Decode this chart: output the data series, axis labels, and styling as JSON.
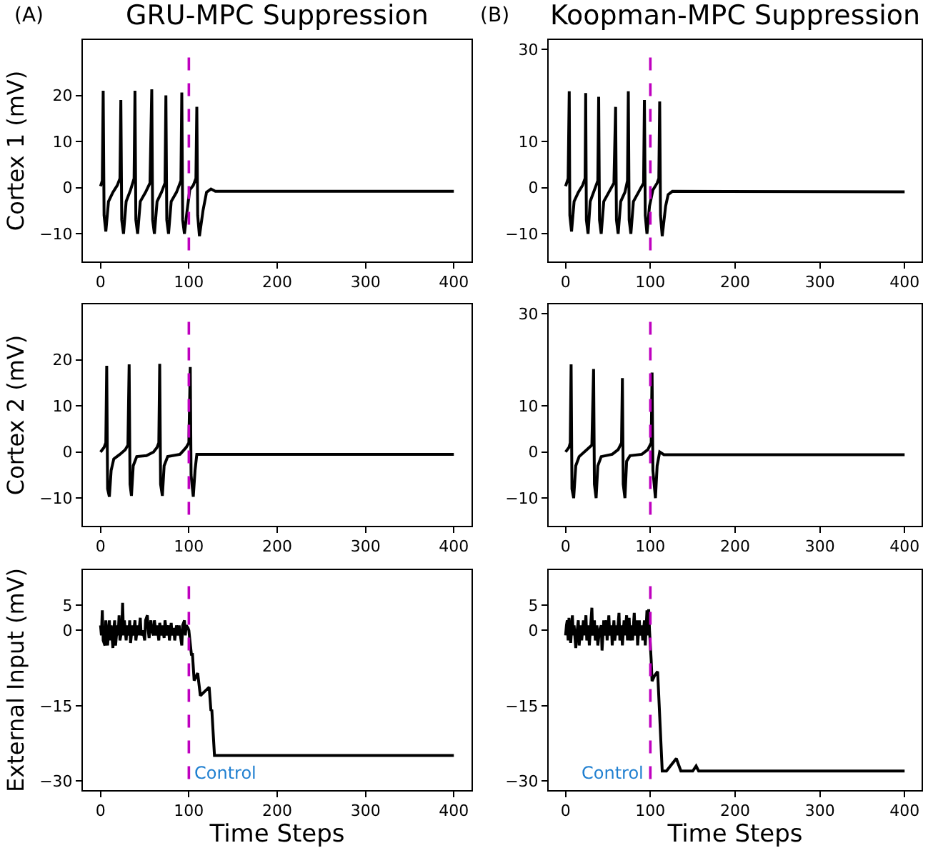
{
  "chart_data": [
    {
      "type": "line",
      "title": "GRU-MPC Suppression",
      "ylabel": "Cortex 1 (mV)",
      "annotations": [
        "(A)"
      ],
      "xlim": [
        -20,
        420
      ],
      "xticks": [
        0,
        100,
        200,
        300,
        400
      ],
      "ylim": [
        -16,
        32
      ],
      "yticks": [
        -10,
        0,
        10,
        20
      ],
      "grid": false,
      "line_style": "solid",
      "ref_lines": [
        {
          "axis": "x",
          "value": 100,
          "color": "#bf00bf",
          "line_style": "dashed"
        }
      ],
      "series": [
        {
          "color": "#000000",
          "x": [
            0,
            2,
            3,
            4,
            6,
            9,
            14,
            19,
            22,
            23,
            24,
            26,
            29,
            34,
            38,
            39,
            40,
            42,
            45,
            51,
            56,
            58,
            59,
            61,
            64,
            69,
            73,
            74,
            75,
            77,
            80,
            86,
            91,
            92,
            93,
            95,
            98,
            101,
            105,
            108,
            109,
            110,
            112,
            116,
            120,
            125,
            130,
            400
          ],
          "values": [
            0.3,
            1.5,
            21,
            -6,
            -9.5,
            -3,
            -1,
            0.5,
            2,
            19,
            -7,
            -10,
            -3,
            -0.5,
            2,
            21,
            -7,
            -10,
            -3,
            -1,
            1,
            21.3,
            -7,
            -10,
            -3,
            -1,
            1,
            20,
            -7,
            -10,
            -3,
            -1,
            1.5,
            20.6,
            -7,
            -10,
            -5,
            -0.5,
            0.5,
            2,
            17.5,
            -6,
            -10.5,
            -5,
            -1,
            -0.3,
            -0.8,
            -0.8
          ]
        }
      ]
    },
    {
      "type": "line",
      "title": "Koopman-MPC Suppression",
      "annotations": [
        "(B)"
      ],
      "xlim": [
        -20,
        420
      ],
      "xticks": [
        0,
        100,
        200,
        300,
        400
      ],
      "ylim": [
        -16,
        32
      ],
      "yticks": [
        -10,
        0,
        10,
        30
      ],
      "grid": false,
      "line_style": "solid",
      "ref_lines": [
        {
          "axis": "x",
          "value": 100,
          "color": "#bf00bf",
          "line_style": "dashed"
        }
      ],
      "series": [
        {
          "color": "#000000",
          "x": [
            0,
            3,
            4.3,
            5,
            7,
            10,
            15,
            20,
            23,
            23.7,
            24.5,
            26.5,
            29,
            34,
            38,
            39,
            40,
            42,
            45,
            51,
            57,
            59,
            60,
            62,
            65,
            70,
            73,
            74,
            75,
            77,
            80,
            86,
            92,
            93,
            94,
            96,
            99,
            103,
            108,
            110,
            111,
            112,
            114,
            118,
            121,
            126,
            400
          ],
          "values": [
            0.3,
            2,
            20.9,
            -6,
            -9.5,
            -3,
            -1,
            0.5,
            2,
            20.5,
            -7,
            -10,
            -3,
            -0.5,
            1.5,
            19.7,
            -7,
            -10,
            -3,
            -1,
            1,
            17.5,
            -7,
            -10,
            -3,
            -1,
            1.5,
            20.9,
            -7,
            -10,
            -3,
            -1,
            1,
            19,
            -6,
            -10,
            -4,
            -0.5,
            1,
            2,
            18.7,
            -6,
            -10.5,
            -4,
            -1.5,
            -0.8,
            -0.9
          ]
        }
      ]
    },
    {
      "type": "line",
      "ylabel": "Cortex 2 (mV)",
      "xlim": [
        -20,
        420
      ],
      "xticks": [
        0,
        100,
        200,
        300,
        400
      ],
      "ylim": [
        -16,
        32
      ],
      "yticks": [
        -10,
        0,
        10,
        20
      ],
      "grid": false,
      "line_style": "solid",
      "ref_lines": [
        {
          "axis": "x",
          "value": 100,
          "color": "#bf00bf",
          "line_style": "dashed"
        }
      ],
      "series": [
        {
          "color": "#000000",
          "x": [
            0,
            4,
            6,
            7,
            8,
            10,
            12,
            15,
            22,
            28,
            31,
            32.4,
            33.4,
            35,
            37,
            41,
            52,
            60,
            64,
            66,
            67,
            68,
            70,
            72,
            76,
            90,
            97,
            100,
            101.6,
            102.5,
            105,
            107,
            109,
            112,
            400
          ],
          "values": [
            0,
            1,
            2,
            18.7,
            -8,
            -9.7,
            -4,
            -1.5,
            -0.5,
            0.5,
            1.5,
            19,
            -7,
            -9.5,
            -3,
            -1,
            -0.8,
            0,
            1,
            2,
            19.1,
            -7,
            -9.5,
            -3,
            -1,
            -0.5,
            1,
            2,
            18.4,
            -5,
            -9.7,
            -4,
            -0.5,
            -0.5,
            -0.5
          ]
        }
      ]
    },
    {
      "type": "line",
      "xlim": [
        -20,
        420
      ],
      "xticks": [
        0,
        100,
        200,
        300,
        400
      ],
      "ylim": [
        -16,
        32
      ],
      "yticks": [
        -10,
        0,
        10,
        30
      ],
      "grid": false,
      "line_style": "solid",
      "ref_lines": [
        {
          "axis": "x",
          "value": 100,
          "color": "#bf00bf",
          "line_style": "dashed"
        }
      ],
      "series": [
        {
          "color": "#000000",
          "x": [
            0,
            4,
            5.5,
            6.5,
            7.5,
            9.5,
            12,
            16,
            25,
            31,
            33,
            34,
            36,
            38,
            42,
            55,
            62,
            66,
            67,
            68,
            70,
            72,
            76,
            90,
            97,
            101,
            102,
            103,
            106,
            108,
            111,
            116,
            400
          ],
          "values": [
            0,
            1,
            2,
            19,
            -8,
            -10,
            -3,
            -1,
            0.5,
            1.5,
            18,
            -7,
            -10,
            -3,
            -1,
            -0.5,
            0.5,
            2,
            16,
            -7,
            -10,
            -2,
            -0.8,
            -0.5,
            0.5,
            2,
            17.2,
            -4,
            -10,
            -3,
            0,
            -0.6,
            -0.6
          ]
        }
      ]
    },
    {
      "type": "line",
      "ylabel": "External Input (mV)",
      "xlabel": "Time Steps",
      "annotations": [
        "Control"
      ],
      "xlim": [
        -20,
        420
      ],
      "xticks": [
        0,
        100,
        200,
        300,
        400
      ],
      "ylim": [
        -31.8,
        12
      ],
      "yticks": [
        -30,
        -15,
        0,
        5
      ],
      "grid": false,
      "line_style": "solid",
      "ref_lines": [
        {
          "axis": "x",
          "value": 100,
          "color": "#bf00bf",
          "line_style": "dashed"
        }
      ],
      "series": [
        {
          "color": "#000000",
          "x": [
            0,
            1,
            2,
            3,
            5,
            6,
            7,
            8,
            10,
            11,
            12,
            14,
            15,
            16,
            17,
            19,
            20,
            21,
            22,
            24,
            25,
            26,
            27,
            29,
            30,
            32,
            33,
            34,
            36,
            37,
            39,
            40,
            42,
            43,
            45,
            46,
            48,
            50,
            51,
            53,
            54,
            55,
            57,
            58,
            60,
            61,
            63,
            64,
            66,
            67,
            69,
            70,
            72,
            73,
            75,
            77,
            78,
            80,
            81,
            83,
            84,
            86,
            88,
            89,
            90,
            92,
            93,
            95,
            96,
            97,
            99,
            100,
            103,
            104,
            106,
            110,
            113,
            123,
            125,
            126,
            129,
            400
          ],
          "values": [
            1,
            -1,
            4,
            -2,
            -3,
            2,
            -1,
            -3,
            2,
            -2,
            1,
            -3.5,
            0,
            2,
            -3,
            1,
            -1,
            3,
            -2,
            0,
            5.5,
            -1,
            2,
            -2,
            1,
            -1,
            2,
            -2.5,
            1,
            -1,
            2,
            -2,
            1,
            -1,
            2.5,
            -1,
            0,
            -2,
            2,
            3,
            0,
            -1.5,
            2,
            0,
            -1,
            2,
            -1,
            1,
            -2,
            1.5,
            -1,
            1,
            -1.5,
            2,
            -1,
            1,
            -2,
            1.5,
            -1,
            0.5,
            -2,
            1,
            -1,
            1,
            -0.5,
            -3,
            1,
            2,
            -1,
            1,
            0.5,
            0,
            -5,
            -4.5,
            -10,
            -8.5,
            -13,
            -11.3,
            -16,
            -15.8,
            -24.9,
            -24.9
          ]
        }
      ]
    },
    {
      "type": "line",
      "xlabel": "Time Steps",
      "annotations": [
        "Control"
      ],
      "xlim": [
        -20,
        420
      ],
      "xticks": [
        0,
        100,
        200,
        300,
        400
      ],
      "ylim": [
        -31.8,
        12
      ],
      "yticks": [
        -30,
        -15,
        0,
        5
      ],
      "grid": false,
      "line_style": "solid",
      "ref_lines": [
        {
          "axis": "x",
          "value": 100,
          "color": "#bf00bf",
          "line_style": "dashed"
        }
      ],
      "series": [
        {
          "color": "#000000",
          "x": [
            0,
            1,
            2,
            3,
            4,
            5,
            6,
            8,
            9,
            10,
            12,
            13,
            15,
            16,
            18,
            19,
            21,
            22,
            24,
            25,
            27,
            28,
            30,
            31,
            32,
            34,
            35,
            37,
            38,
            40,
            42,
            43,
            45,
            46,
            48,
            49,
            51,
            52,
            54,
            55,
            57,
            58,
            60,
            61,
            63,
            64,
            66,
            67,
            69,
            70,
            72,
            73,
            75,
            76,
            78,
            79,
            81,
            82,
            84,
            85,
            87,
            88,
            90,
            91,
            93,
            94,
            96,
            97,
            98,
            99,
            101,
            102,
            105,
            108.6,
            114,
            119,
            130.6,
            136,
            150,
            154,
            157,
            400
          ],
          "values": [
            -1,
            1,
            2,
            -2,
            2.5,
            0,
            -2.5,
            3,
            -1,
            1,
            -3.5,
            -1,
            2,
            -3,
            1,
            -2,
            2,
            -1,
            3,
            -2,
            1,
            -3,
            2,
            4.5,
            -1,
            2,
            -2,
            1,
            -3,
            0,
            1,
            -4,
            2,
            -1,
            2,
            -2,
            3,
            -1,
            1,
            -3,
            2,
            -2,
            1,
            -1,
            3.5,
            -2,
            1,
            -3,
            2,
            -1,
            3,
            -2,
            2.5,
            -2,
            1,
            -2,
            3.5,
            -1,
            2,
            -3,
            2,
            -1,
            1,
            -2,
            2,
            -3,
            4,
            -1,
            4.2,
            0,
            -6,
            -10.1,
            -9,
            -8.2,
            -28,
            -28,
            -25.5,
            -28,
            -28,
            -27,
            -28,
            -28
          ]
        }
      ]
    }
  ]
}
